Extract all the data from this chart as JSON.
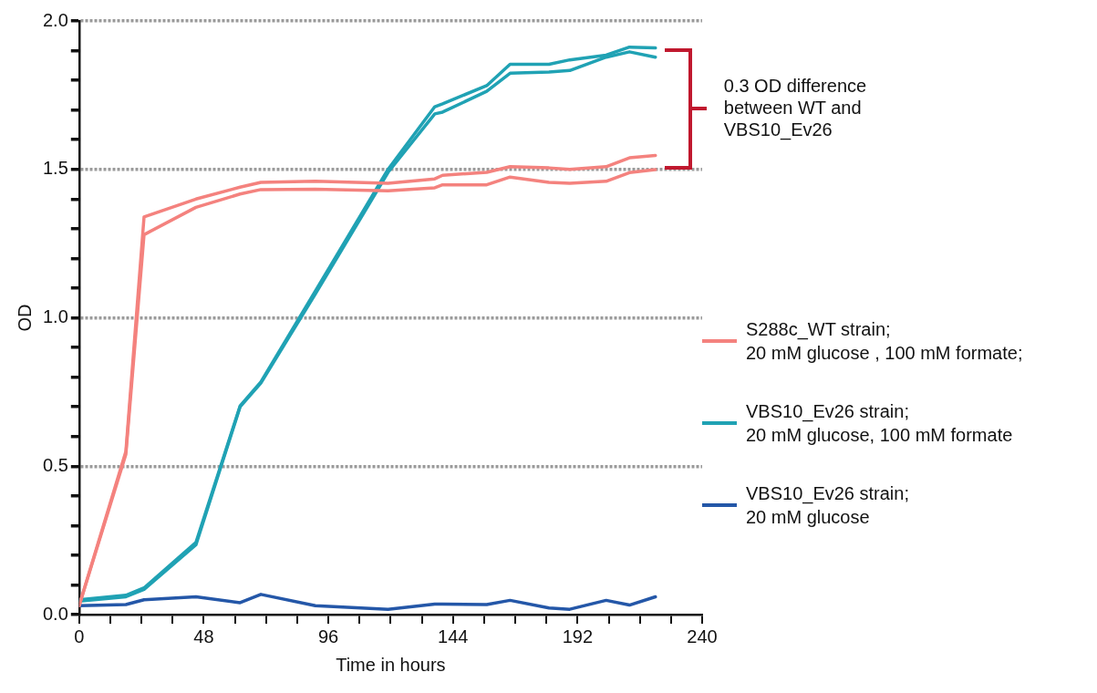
{
  "chart_data": {
    "type": "line",
    "xlabel": "Time in hours",
    "ylabel": "OD",
    "x": [
      0,
      18,
      25,
      45,
      62,
      70,
      91,
      119,
      137,
      140,
      157,
      166,
      181,
      189,
      203,
      212,
      222
    ],
    "series": [
      {
        "name": "S288c_WT strain;\n20 mM glucose , 100 mM formate;",
        "color": "#f4827e",
        "values": [
          0.03,
          0.55,
          1.34,
          1.4,
          1.44,
          1.456,
          1.46,
          1.453,
          1.468,
          1.48,
          1.49,
          1.509,
          1.505,
          1.5,
          1.509,
          1.539,
          1.547
        ]
      },
      {
        "color": "#f4827e",
        "values": [
          0.03,
          0.54,
          1.28,
          1.372,
          1.417,
          1.432,
          1.433,
          1.428,
          1.438,
          1.448,
          1.448,
          1.474,
          1.456,
          1.453,
          1.46,
          1.489,
          1.499
        ]
      },
      {
        "name": "VBS10_Ev26 strain;\n20 mM glucose, 100 mM formate",
        "color": "#20a2b4",
        "values": [
          0.05,
          0.065,
          0.09,
          0.243,
          0.703,
          0.784,
          1.09,
          1.5,
          1.711,
          1.721,
          1.782,
          1.854,
          1.854,
          1.869,
          1.885,
          1.912,
          1.909
        ]
      },
      {
        "color": "#20a2b4",
        "values": [
          0.045,
          0.06,
          0.085,
          0.235,
          0.7,
          0.78,
          1.08,
          1.49,
          1.687,
          1.693,
          1.763,
          1.824,
          1.828,
          1.833,
          1.878,
          1.896,
          1.878
        ]
      },
      {
        "name": "VBS10_Ev26 strain;\n20 mM glucose",
        "color": "#2457a8",
        "values": [
          0.03,
          0.034,
          0.05,
          0.06,
          0.04,
          0.068,
          0.03,
          0.018,
          0.035,
          0.035,
          0.034,
          0.048,
          0.022,
          0.018,
          0.048,
          0.032,
          0.06
        ]
      }
    ],
    "xlim": [
      0,
      240
    ],
    "xticks": [
      0,
      {
        "value": 12,
        "label": null
      },
      {
        "value": 24,
        "label": null
      },
      {
        "value": 36,
        "label": null
      },
      48,
      {
        "value": 60,
        "label": null
      },
      {
        "value": 72,
        "label": null
      },
      {
        "value": 84,
        "label": null
      },
      96,
      {
        "value": 108,
        "label": null
      },
      {
        "value": 120,
        "label": null
      },
      {
        "value": 132,
        "label": null
      },
      144,
      {
        "value": 156,
        "label": null
      },
      {
        "value": 168,
        "label": null
      },
      {
        "value": 180,
        "label": null
      },
      192,
      {
        "value": 204,
        "label": null
      },
      {
        "value": 216,
        "label": null
      },
      {
        "value": 228,
        "label": null
      },
      240
    ],
    "ylim": [
      0,
      2
    ],
    "yticks": [
      {
        "value": 0,
        "label": "0.0"
      },
      {
        "value": 0.1,
        "label": null
      },
      {
        "value": 0.2,
        "label": null
      },
      {
        "value": 0.3,
        "label": null
      },
      {
        "value": 0.4,
        "label": null
      },
      {
        "value": 0.5,
        "label": "0.5"
      },
      {
        "value": 0.6,
        "label": null
      },
      {
        "value": 0.7,
        "label": null
      },
      {
        "value": 0.8,
        "label": null
      },
      {
        "value": 0.9,
        "label": null
      },
      {
        "value": 1,
        "label": "1.0"
      },
      {
        "value": 1.1,
        "label": null
      },
      {
        "value": 1.2,
        "label": null
      },
      {
        "value": 1.3,
        "label": null
      },
      {
        "value": 1.4,
        "label": null
      },
      {
        "value": 1.5,
        "label": "1.5"
      },
      {
        "value": 1.6,
        "label": null
      },
      {
        "value": 1.7,
        "label": null
      },
      {
        "value": 1.8,
        "label": null
      },
      {
        "value": 1.9,
        "label": null
      },
      {
        "value": 2,
        "label": "2.0"
      }
    ],
    "grid": "y",
    "legend": "right",
    "marker": "none",
    "line_style": "solid",
    "annotations": [
      "0.3 OD difference\nbetween WT and\nVBS10_Ev26"
    ]
  }
}
